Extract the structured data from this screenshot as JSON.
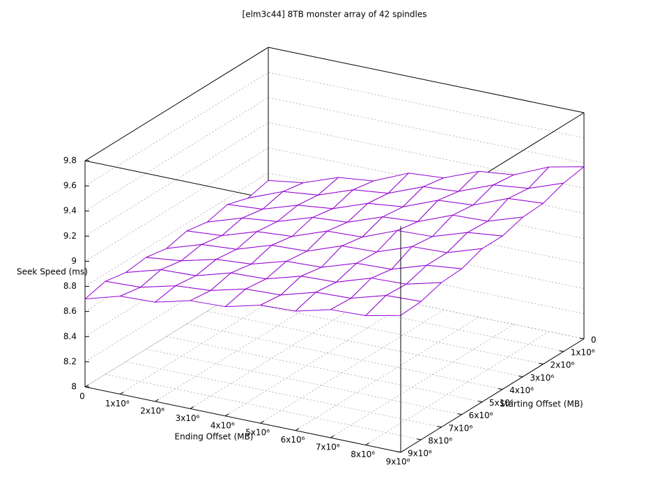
{
  "chart_data": {
    "type": "surface",
    "title": "[elm3c44] 8TB monster array of 42 spindles",
    "x_label": "Ending Offset (MB)",
    "y_label": "Starting Offset (MB)",
    "z_label": "Seek Speed (ms)",
    "top_color": "#9400d3",
    "bottom_color": "#009e73",
    "grid": true,
    "x": [
      0,
      1000000,
      2000000,
      3000000,
      4000000,
      5000000,
      6000000,
      7000000,
      8000000,
      9000000
    ],
    "y": [
      0,
      1000000,
      2000000,
      3000000,
      4000000,
      5000000,
      6000000,
      7000000,
      8000000,
      9000000
    ],
    "z": [
      [
        8.74,
        8.78,
        8.88,
        8.91,
        9.03,
        9.05,
        9.16,
        9.19,
        9.31,
        9.37
      ],
      [
        8.7,
        8.81,
        8.84,
        8.94,
        8.97,
        9.08,
        9.1,
        9.21,
        9.24,
        9.34
      ],
      [
        8.75,
        8.77,
        8.86,
        8.89,
        8.99,
        9.02,
        9.13,
        9.15,
        9.26,
        9.28
      ],
      [
        8.71,
        8.8,
        8.83,
        8.92,
        8.94,
        9.04,
        9.06,
        9.17,
        9.18,
        9.27
      ],
      [
        8.74,
        8.76,
        8.85,
        8.87,
        8.97,
        8.98,
        9.09,
        9.1,
        9.19,
        9.22
      ],
      [
        8.7,
        8.79,
        8.81,
        8.9,
        8.91,
        9.01,
        9.02,
        9.12,
        9.13,
        9.22
      ],
      [
        8.73,
        8.76,
        8.83,
        8.85,
        8.93,
        8.94,
        9.03,
        9.04,
        9.13,
        9.16
      ],
      [
        8.71,
        8.79,
        8.8,
        8.88,
        8.89,
        8.97,
        8.98,
        9.07,
        9.08,
        9.15
      ],
      [
        8.74,
        8.75,
        8.82,
        8.84,
        8.91,
        8.92,
        9.0,
        9.01,
        9.09,
        9.1
      ],
      [
        8.7,
        8.78,
        8.79,
        8.86,
        8.87,
        8.94,
        8.95,
        9.02,
        9.03,
        9.09
      ]
    ],
    "xlim": [
      0,
      9000000
    ],
    "ylim": [
      0,
      9000000
    ],
    "zlim": [
      8,
      9.8
    ],
    "xticks": [
      0,
      {
        "value": 1000000,
        "label": "1x10⁶"
      },
      {
        "value": 2000000,
        "label": "2x10⁶"
      },
      {
        "value": 3000000,
        "label": "3x10⁶"
      },
      {
        "value": 4000000,
        "label": "4x10⁶"
      },
      {
        "value": 5000000,
        "label": "5x10⁶"
      },
      {
        "value": 6000000,
        "label": "6x10⁶"
      },
      {
        "value": 7000000,
        "label": "7x10⁶"
      },
      {
        "value": 8000000,
        "label": "8x10⁶"
      },
      {
        "value": 9000000,
        "label": "9x10⁶"
      }
    ],
    "yticks": [
      0,
      {
        "value": 1000000,
        "label": "1x10⁶"
      },
      {
        "value": 2000000,
        "label": "2x10⁶"
      },
      {
        "value": 3000000,
        "label": "3x10⁶"
      },
      {
        "value": 4000000,
        "label": "4x10⁶"
      },
      {
        "value": 5000000,
        "label": "5x10⁶"
      },
      {
        "value": 6000000,
        "label": "6x10⁶"
      },
      {
        "value": 7000000,
        "label": "7x10⁶"
      },
      {
        "value": 8000000,
        "label": "8x10⁶"
      },
      {
        "value": 9000000,
        "label": "9x10⁶"
      }
    ],
    "zticks": [
      8,
      8.2,
      8.4,
      8.6,
      8.8,
      9,
      9.2,
      9.4,
      9.6,
      9.8
    ]
  }
}
